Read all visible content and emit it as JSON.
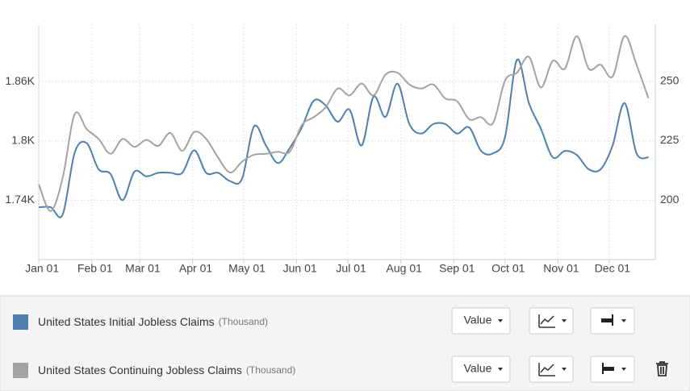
{
  "chart_data": {
    "type": "line",
    "xlim": [
      -1,
      361
    ],
    "xticks": [
      {
        "value": 0,
        "label": "Jan 01"
      },
      {
        "value": 31,
        "label": "Feb 01"
      },
      {
        "value": 59,
        "label": "Mar 01"
      },
      {
        "value": 90,
        "label": "Apr 01"
      },
      {
        "value": 120,
        "label": "May 01"
      },
      {
        "value": 151,
        "label": "Jun 01"
      },
      {
        "value": 181,
        "label": "Jul 01"
      },
      {
        "value": 212,
        "label": "Aug 01"
      },
      {
        "value": 243,
        "label": "Sep 01"
      },
      {
        "value": 273,
        "label": "Oct 01"
      },
      {
        "value": 304,
        "label": "Nov 01"
      },
      {
        "value": 334,
        "label": "Dec 01"
      }
    ],
    "ylim": [
      1680,
      1918
    ],
    "yticks": [
      {
        "value": 1740,
        "label": "1.74K"
      },
      {
        "value": 1800,
        "label": "1.8K"
      },
      {
        "value": 1860,
        "label": "1.86K"
      }
    ],
    "y2lim": [
      175,
      274
    ],
    "y2ticks": [
      200,
      225,
      250
    ],
    "grid": true,
    "x": [
      0,
      7,
      14,
      21,
      28,
      35,
      42,
      49,
      56,
      63,
      70,
      77,
      84,
      91,
      98,
      105,
      112,
      119,
      126,
      133,
      140,
      147,
      154,
      161,
      168,
      175,
      182,
      189,
      196,
      203,
      210,
      217,
      224,
      231,
      238,
      245,
      252,
      259,
      266,
      273,
      280,
      287,
      294,
      301,
      308,
      315,
      322,
      329,
      336,
      343,
      350,
      357
    ],
    "series": [
      {
        "name": "United States Initial Jobless Claims",
        "unit": "(Thousand)",
        "mode": "Value",
        "color": "#4f7fb0",
        "axis": "y2",
        "values": [
          197,
          197,
          194,
          220,
          224,
          213,
          211,
          200,
          212,
          210,
          211.5,
          211.5,
          211.5,
          221,
          211.5,
          211.5,
          208,
          209,
          231,
          223,
          215.6,
          222,
          230.6,
          241.8,
          239.8,
          233,
          238,
          223,
          243.5,
          235,
          249,
          232,
          228,
          232,
          232,
          228,
          230.6,
          220.7,
          219.7,
          226.5,
          259,
          240.8,
          230,
          218,
          220.7,
          219,
          213,
          213,
          223,
          240.8,
          219.7,
          218
        ]
      },
      {
        "name": "United States Continuing Jobless Claims",
        "unit": "(Thousand)",
        "mode": "Value",
        "color": "#a3a3a3",
        "values": [
          1756,
          1729,
          1763,
          1827,
          1812,
          1802,
          1787,
          1802,
          1794,
          1801,
          1795,
          1808,
          1790,
          1809,
          1802,
          1783,
          1768,
          1779,
          1786,
          1787,
          1789,
          1789,
          1816,
          1824,
          1834,
          1853,
          1846,
          1858,
          1846,
          1867,
          1869,
          1857,
          1853,
          1857,
          1843,
          1840,
          1822,
          1824,
          1818,
          1861,
          1869,
          1885,
          1854,
          1881,
          1873,
          1906,
          1873,
          1877,
          1865,
          1906,
          1877,
          1843
        ]
      }
    ]
  }
}
